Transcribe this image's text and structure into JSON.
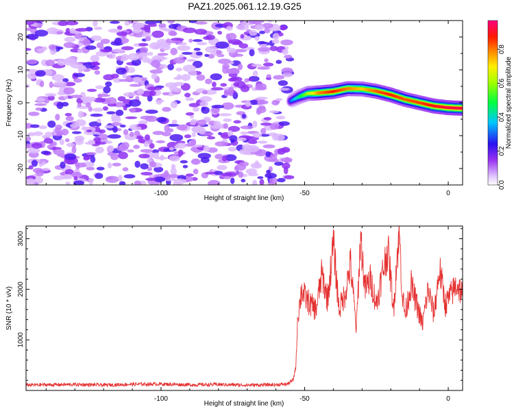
{
  "title": "PAZ1.2025.061.12.19.G25",
  "chart_data": [
    {
      "type": "heatmap",
      "title": "PAZ1.2025.061.12.19.G25",
      "xlabel": "Height of straight line (km)",
      "ylabel": "Frequency (Hz)",
      "xlim": [
        -147,
        5
      ],
      "ylim": [
        -25,
        25
      ],
      "xticks": [
        -100,
        -50,
        0
      ],
      "yticks": [
        -20,
        -10,
        0,
        10,
        20
      ],
      "colorbar": {
        "label": "Normalized spectral amplitude",
        "range": [
          0,
          0.97
        ],
        "ticks": [
          0,
          0.2,
          0.4,
          0.6,
          0.8
        ],
        "colormap": "white-violet-blue-cyan-green-yellow-orange-red-magenta"
      },
      "noise_region": {
        "x_range": [
          -147,
          -55
        ],
        "max_amplitude": 0.3
      },
      "signal_track": {
        "description": "frequency of dominant signal vs height",
        "x": [
          -55,
          -52,
          -49,
          -45,
          -40,
          -35,
          -30,
          -25,
          -20,
          -15,
          -10,
          -5,
          0,
          5
        ],
        "y": [
          0.5,
          1.8,
          2.8,
          3.0,
          3.4,
          4.3,
          4.2,
          3.5,
          2.4,
          1.0,
          0.0,
          -1.0,
          -1.5,
          -1.7
        ],
        "amplitude": [
          0.3,
          0.45,
          0.62,
          0.82,
          0.9,
          0.82,
          0.75,
          0.85,
          0.9,
          0.85,
          0.87,
          0.92,
          0.95,
          0.95
        ]
      }
    },
    {
      "type": "line",
      "xlabel": "Height of straight line (km)",
      "ylabel": "SNR (10 * v/v)",
      "xlim": [
        -147,
        5
      ],
      "ylim": [
        0,
        3250
      ],
      "xticks": [
        -100,
        -50,
        0
      ],
      "yticks": [
        1000,
        2000,
        3000
      ],
      "color": "#e53030",
      "x": [
        -147,
        -140,
        -130,
        -120,
        -110,
        -100,
        -90,
        -80,
        -70,
        -60,
        -56,
        -54,
        -53,
        -52.5,
        -51,
        -50,
        -48,
        -46,
        -44,
        -42,
        -40,
        -38,
        -36,
        -34,
        -32,
        -30.5,
        -29,
        -27,
        -25,
        -23,
        -21,
        -19,
        -18,
        -17,
        -16,
        -15,
        -13,
        -11,
        -9,
        -7,
        -5,
        -3,
        -1,
        1,
        3,
        5
      ],
      "values": [
        100,
        105,
        110,
        100,
        115,
        120,
        105,
        110,
        100,
        105,
        120,
        200,
        500,
        1400,
        2000,
        1850,
        1700,
        1600,
        2300,
        1800,
        2900,
        1600,
        1900,
        2500,
        1200,
        3050,
        2000,
        2200,
        1700,
        2300,
        2800,
        1600,
        2550,
        3100,
        1900,
        1500,
        2100,
        1700,
        1300,
        2000,
        1500,
        2400,
        1700,
        1900,
        2100,
        1900
      ]
    }
  ]
}
